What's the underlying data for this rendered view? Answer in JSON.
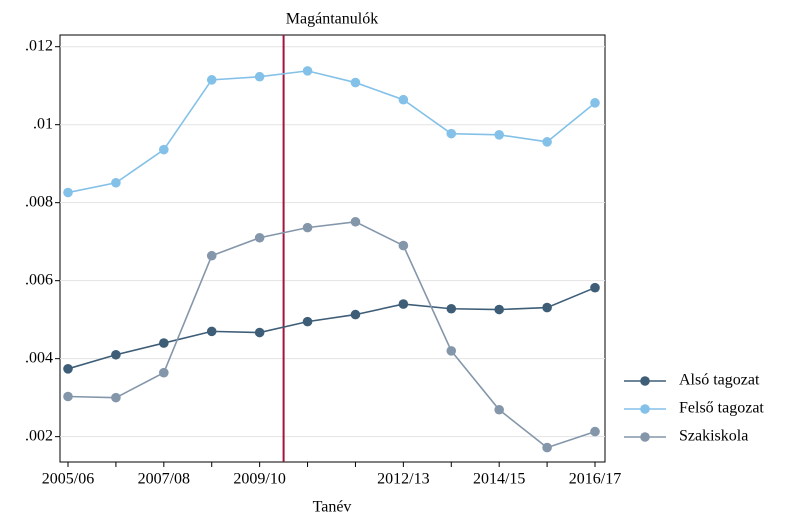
{
  "chart_data": {
    "type": "line",
    "title": "Magántanulók",
    "x_label": "Tanév",
    "categories": [
      "2005/06",
      null,
      "2007/08",
      null,
      "2009/10",
      null,
      null,
      "2012/13",
      null,
      "2014/15",
      null,
      "2016/17"
    ],
    "series": [
      {
        "name": "Alsó tagozat",
        "color": "#3e5e78",
        "values": [
          0.00374,
          0.0041,
          0.0044,
          0.0047,
          0.00467,
          0.00495,
          0.00513,
          0.0054,
          0.00528,
          0.00526,
          0.00531,
          0.00582
        ]
      },
      {
        "name": "Felső tagozat",
        "color": "#84c1e8",
        "values": [
          0.00826,
          0.00851,
          0.00936,
          0.01115,
          0.01123,
          0.01138,
          0.01108,
          0.01064,
          0.00977,
          0.00974,
          0.00956,
          0.01056
        ]
      },
      {
        "name": "Szakiskola",
        "color": "#8496aa",
        "values": [
          0.00303,
          0.003,
          0.00364,
          0.00664,
          0.0071,
          0.00736,
          0.00751,
          0.0069,
          0.0042,
          0.00269,
          0.00172,
          0.00213
        ]
      }
    ],
    "ylim": [
      0.00135,
      0.0123
    ],
    "yticks": [
      {
        "value": 0.002,
        "label": ".002"
      },
      {
        "value": 0.004,
        "label": ".004"
      },
      {
        "value": 0.006,
        "label": ".006"
      },
      {
        "value": 0.008,
        "label": ".008"
      },
      {
        "value": 0.01,
        "label": ".01"
      },
      {
        "value": 0.012,
        "label": ".012"
      }
    ],
    "grid": true,
    "legend": "right",
    "vline": {
      "x": 4.5,
      "color": "#a0153e"
    }
  }
}
